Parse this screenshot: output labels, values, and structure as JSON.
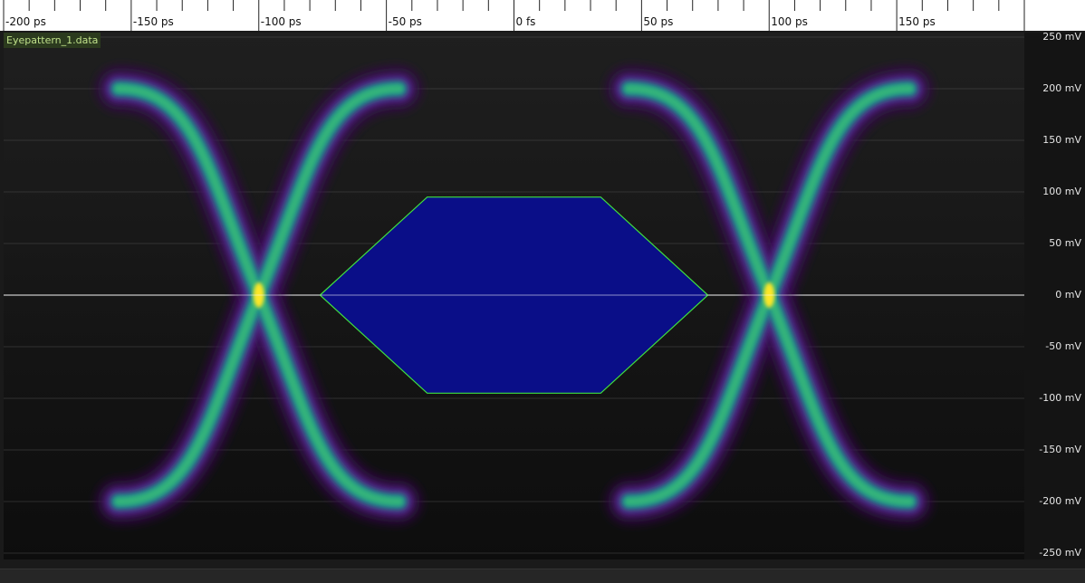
{
  "channel": {
    "label": "Eyepattern_1.data"
  },
  "chart_data": {
    "type": "heatmap",
    "title": "",
    "xlabel": "",
    "ylabel": "",
    "x_tick_labels": [
      "-200 ps",
      "-150 ps",
      "-100 ps",
      "-50 ps",
      "0 fs",
      "50 ps",
      "100 ps",
      "150 ps"
    ],
    "x_ticks_ps": [
      -200,
      -150,
      -100,
      -50,
      0,
      50,
      100,
      150
    ],
    "xlim_ps": [
      -200,
      200
    ],
    "y_tick_labels": [
      "250 mV",
      "200 mV",
      "150 mV",
      "100 mV",
      "50 mV",
      "0 mV",
      "-50 mV",
      "-100 mV",
      "-150 mV",
      "-200 mV",
      "-250 mV"
    ],
    "y_ticks_mv": [
      250,
      200,
      150,
      100,
      50,
      0,
      -50,
      -100,
      -150,
      -200,
      -250
    ],
    "ylim_mv": [
      -250,
      250
    ],
    "grid": true,
    "levels_mv": {
      "high": 200,
      "low": -200
    },
    "crossings_ps": [
      -100,
      100
    ],
    "eye_mask": {
      "polygon": [
        [
          -76,
          0
        ],
        [
          -34,
          95
        ],
        [
          34,
          95
        ],
        [
          76,
          0
        ],
        [
          34,
          -95
        ],
        [
          -34,
          -95
        ]
      ],
      "fill": "#0a0e8c",
      "stroke": "#3fe03f"
    },
    "colormap": [
      "#3a0a55",
      "#4f2a85",
      "#1f8f8a",
      "#35b779",
      "#fde725"
    ]
  },
  "colors": {
    "background": "#121212",
    "grid": "#555555",
    "zero_line": "#ffffff"
  }
}
